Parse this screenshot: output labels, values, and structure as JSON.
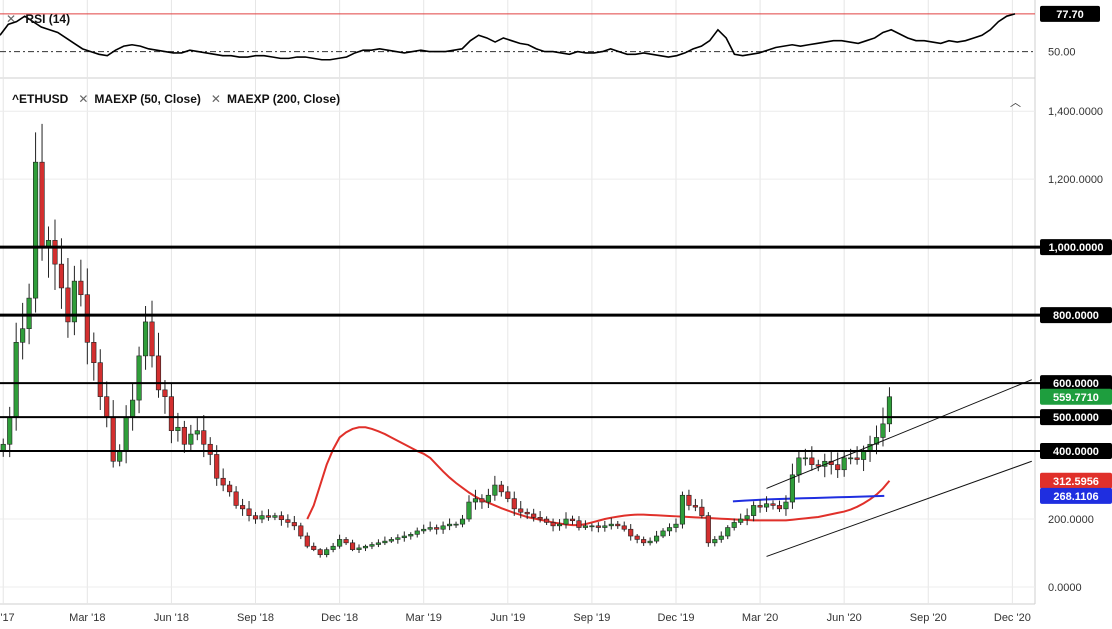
{
  "rsi_panel": {
    "legend": "RSI (14)",
    "current_value": "77.70",
    "mid_label": "50.00",
    "line_color": "#000000",
    "overbought_color": "#e04040",
    "values": [
      62,
      70,
      72,
      76,
      72,
      68,
      66,
      64,
      60,
      56,
      52,
      50,
      48,
      47,
      51,
      54,
      55,
      54,
      52,
      51,
      50,
      49,
      49,
      51,
      50,
      49,
      48,
      47,
      47,
      46,
      46,
      47,
      47,
      46,
      45,
      45,
      46,
      46,
      45,
      44,
      44,
      45,
      46,
      49,
      51,
      51,
      52,
      51,
      50,
      49,
      50,
      51,
      50,
      50,
      50,
      51,
      52,
      58,
      62,
      60,
      57,
      60,
      58,
      56,
      55,
      52,
      50,
      50,
      49,
      48,
      50,
      49,
      49,
      50,
      52,
      50,
      48,
      48,
      49,
      48,
      47,
      46,
      47,
      49,
      52,
      54,
      58,
      66,
      60,
      48,
      47,
      48,
      49,
      51,
      53,
      54,
      55,
      54,
      55,
      56,
      57,
      58,
      58,
      57,
      56,
      58,
      60,
      64,
      66,
      63,
      60,
      58,
      58,
      57,
      56,
      58,
      57,
      58,
      60,
      62,
      66,
      72,
      76,
      77.7
    ]
  },
  "legend": {
    "symbol": "^ETHUSD",
    "ma50": "MAEXP (50, Close)",
    "ma200": "MAEXP (200, Close)"
  },
  "chart_data": {
    "type": "candlestick",
    "symbol": "^ETHUSD",
    "interval": "weekly",
    "ylim": [
      -50,
      1480
    ],
    "y_ticks": [
      0,
      200,
      400,
      600,
      800,
      1000,
      1200,
      1400
    ],
    "y_tick_labels": [
      "0.0000",
      "200.0000",
      "400.0000",
      "600.0000",
      "800.0000",
      "1,000.0000",
      "1,200.0000",
      "1,400.0000"
    ],
    "x_ticks": [
      "c '17",
      "Mar '18",
      "Jun '18",
      "Sep '18",
      "Dec '18",
      "Mar '19",
      "Jun '19",
      "Sep '19",
      "Dec '19",
      "Mar '20",
      "Jun '20",
      "Sep '20",
      "Dec '20"
    ],
    "x_tick_index": [
      0,
      13,
      26,
      39,
      52,
      65,
      78,
      91,
      104,
      117,
      130,
      143,
      156
    ],
    "horizontal_levels": [
      {
        "value": 1000,
        "label": "1,000.0000",
        "width": 3
      },
      {
        "value": 800,
        "label": "800.0000",
        "width": 3
      },
      {
        "value": 600,
        "label": "600.0000",
        "width": 2
      },
      {
        "value": 500,
        "label": "500.0000",
        "width": 2
      },
      {
        "value": 400,
        "label": "400.0000",
        "width": 2
      }
    ],
    "last_price": {
      "value": 559.771,
      "label": "559.7710",
      "color": "#1e9e3e"
    },
    "ema50_last": {
      "value": 312.5956,
      "label": "312.5956",
      "color": "#e0302a"
    },
    "ema200_last": {
      "value": 268.1106,
      "label": "268.1106",
      "color": "#1f2ee0"
    },
    "up_color": "#2f9e3a",
    "down_color": "#d32f2f",
    "closes": [
      420,
      500,
      720,
      760,
      850,
      1250,
      1000,
      1020,
      950,
      880,
      780,
      900,
      860,
      720,
      660,
      560,
      500,
      370,
      400,
      500,
      550,
      680,
      780,
      680,
      580,
      560,
      460,
      470,
      420,
      450,
      460,
      420,
      390,
      320,
      300,
      280,
      240,
      230,
      210,
      200,
      210,
      205,
      210,
      198,
      190,
      180,
      150,
      120,
      110,
      95,
      110,
      120,
      140,
      130,
      110,
      115,
      120,
      125,
      130,
      135,
      140,
      145,
      150,
      155,
      165,
      170,
      175,
      170,
      180,
      185,
      185,
      200,
      250,
      260,
      250,
      270,
      300,
      280,
      260,
      230,
      220,
      215,
      205,
      200,
      190,
      180,
      185,
      200,
      195,
      175,
      180,
      180,
      175,
      180,
      185,
      180,
      170,
      150,
      140,
      130,
      135,
      150,
      165,
      175,
      185,
      270,
      240,
      235,
      210,
      130,
      140,
      150,
      175,
      190,
      200,
      210,
      240,
      235,
      245,
      240,
      230,
      250,
      330,
      380,
      380,
      360,
      355,
      370,
      360,
      345,
      380,
      380,
      375,
      400,
      420,
      440,
      480,
      559.77
    ],
    "ema50": [
      200,
      240,
      300,
      360,
      405,
      440,
      455,
      465,
      470,
      470,
      465,
      458,
      450,
      440,
      430,
      420,
      410,
      400,
      392,
      380,
      360,
      340,
      322,
      306,
      292,
      278,
      266,
      256,
      248,
      240,
      232,
      225,
      218,
      212,
      206,
      202,
      198,
      194,
      190,
      187,
      184,
      182,
      182,
      185,
      190,
      195,
      200,
      204,
      207,
      210,
      212,
      213,
      213,
      212,
      211,
      210,
      209,
      208,
      207,
      206,
      205,
      204,
      203,
      202,
      201,
      200,
      199,
      198,
      197,
      196,
      196,
      196,
      196,
      196,
      196,
      198,
      200,
      202,
      204,
      206,
      210,
      214,
      218,
      222,
      228,
      236,
      246,
      258,
      272,
      290,
      312.5956
    ],
    "ema200": [
      252,
      254,
      256,
      258,
      259,
      260,
      261,
      262,
      263,
      264,
      265,
      266,
      267,
      268.1106
    ],
    "channel": {
      "upper_start": [
        118,
        290
      ],
      "upper_end": [
        159,
        610
      ],
      "lower_start": [
        118,
        90
      ],
      "lower_end": [
        159,
        370
      ]
    }
  }
}
